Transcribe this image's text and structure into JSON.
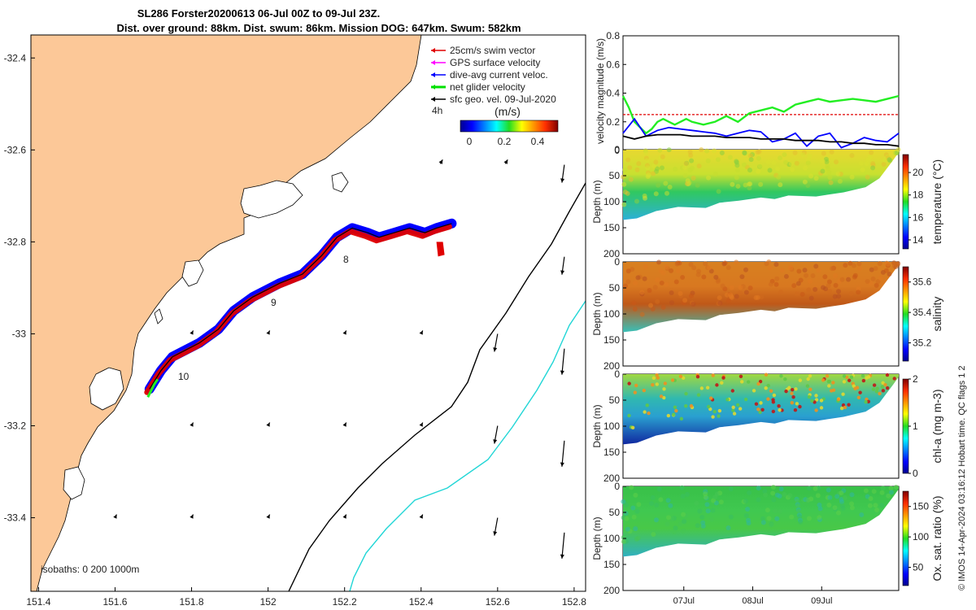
{
  "title": {
    "line1": "SL286 Forster20200613 06-Jul 00Z to 09-Jul 23Z.",
    "line2": "Dist. over ground: 88km. Dist. swum: 86km. Mission DOG: 647km. Swum: 582km"
  },
  "legend": {
    "items": [
      {
        "label": "25cm/s swim vector",
        "color": "#e00000"
      },
      {
        "label": "GPS surface velocity",
        "color": "#ff00ff"
      },
      {
        "label": "dive-avg current veloc.",
        "color": "#0000ff"
      },
      {
        "label": "net glider velocity",
        "color": "#00e000"
      },
      {
        "label": "sfc geo. vel. 09-Jul-2020",
        "color": "#000000"
      }
    ],
    "tag": "4h",
    "colorbar_label": "(m/s)",
    "colorbar_ticks": [
      "0",
      "0.2",
      "0.4"
    ]
  },
  "isobaths_label": "isobaths: 0   200  1000m",
  "footer": "© IMOS 14-Apr-2024 03:16:12 Hobart time. QC flags 1  2",
  "colors": {
    "land": "#fcc898",
    "shelf": "#000000",
    "slope": "#21d6d6",
    "swim": "#e00000",
    "current": "#0000ff",
    "net": "#22ee22"
  },
  "chart_data": [
    {
      "type": "scatter",
      "name": "map",
      "xlabel": "",
      "ylabel": "",
      "xlim": [
        151.38,
        152.83
      ],
      "ylim": [
        -33.56,
        -32.35
      ],
      "x_ticks": [
        "151.4",
        "151.6",
        "151.8",
        "152",
        "152.2",
        "152.4",
        "152.6",
        "152.8"
      ],
      "y_ticks": [
        "-32.4",
        "-32.6",
        "-32.8",
        "-33",
        "-33.2",
        "-33.4"
      ],
      "track_labels": [
        {
          "text": "8",
          "lon": 152.18,
          "lat": -32.82
        },
        {
          "text": "9",
          "lon": 151.95,
          "lat": -32.92
        },
        {
          "text": "10",
          "lon": 151.74,
          "lat": -33.08
        }
      ],
      "track": [
        [
          151.69,
          -33.12
        ],
        [
          151.72,
          -33.08
        ],
        [
          151.75,
          -33.05
        ],
        [
          151.82,
          -33.02
        ],
        [
          151.87,
          -32.99
        ],
        [
          151.91,
          -32.95
        ],
        [
          151.96,
          -32.92
        ],
        [
          152.03,
          -32.89
        ],
        [
          152.09,
          -32.87
        ],
        [
          152.14,
          -32.83
        ],
        [
          152.18,
          -32.79
        ],
        [
          152.22,
          -32.77
        ],
        [
          152.26,
          -32.78
        ],
        [
          152.29,
          -32.79
        ],
        [
          152.33,
          -32.78
        ],
        [
          152.37,
          -32.77
        ],
        [
          152.41,
          -32.78
        ],
        [
          152.44,
          -32.77
        ],
        [
          152.48,
          -32.76
        ]
      ]
    },
    {
      "type": "line",
      "name": "velocity",
      "ylabel": "velocity magnitude (m/s)",
      "xlim": [
        0,
        96
      ],
      "ylim": [
        0,
        0.8
      ],
      "y_ticks": [
        "0",
        "0.2",
        "0.4",
        "0.6",
        "0.8"
      ],
      "series": [
        {
          "name": "25cm/s swim vector",
          "color": "#e00000",
          "x": [
            0,
            96
          ],
          "values": [
            0.25,
            0.25
          ]
        },
        {
          "name": "net glider velocity",
          "color": "#22ee22",
          "x": [
            0,
            2,
            4,
            6,
            8,
            10,
            12,
            14,
            16,
            18,
            20,
            22,
            24,
            28,
            32,
            36,
            40,
            44,
            48,
            52,
            56,
            60,
            64,
            68,
            72,
            76,
            80,
            84,
            88,
            92,
            96
          ],
          "values": [
            0.38,
            0.3,
            0.2,
            0.16,
            0.12,
            0.15,
            0.2,
            0.22,
            0.2,
            0.18,
            0.2,
            0.22,
            0.2,
            0.18,
            0.2,
            0.24,
            0.2,
            0.26,
            0.28,
            0.3,
            0.27,
            0.32,
            0.34,
            0.36,
            0.34,
            0.35,
            0.36,
            0.35,
            0.34,
            0.36,
            0.38
          ]
        },
        {
          "name": "dive-avg current veloc.",
          "color": "#0000ff",
          "x": [
            0,
            4,
            8,
            12,
            16,
            20,
            24,
            28,
            32,
            36,
            40,
            44,
            48,
            52,
            56,
            60,
            64,
            68,
            72,
            76,
            80,
            84,
            88,
            92,
            96
          ],
          "values": [
            0.12,
            0.22,
            0.1,
            0.14,
            0.16,
            0.15,
            0.14,
            0.13,
            0.12,
            0.1,
            0.12,
            0.14,
            0.13,
            0.06,
            0.08,
            0.12,
            0.03,
            0.1,
            0.12,
            0.02,
            0.05,
            0.09,
            0.07,
            0.06,
            0.12
          ]
        },
        {
          "name": "sfc geo. vel. 09-Jul-2020",
          "color": "#000000",
          "x": [
            0,
            4,
            8,
            12,
            16,
            20,
            24,
            28,
            32,
            36,
            40,
            44,
            48,
            52,
            56,
            60,
            64,
            68,
            72,
            76,
            80,
            84,
            88,
            92,
            96
          ],
          "values": [
            0.1,
            0.08,
            0.1,
            0.11,
            0.11,
            0.11,
            0.1,
            0.1,
            0.1,
            0.09,
            0.09,
            0.09,
            0.08,
            0.08,
            0.08,
            0.07,
            0.07,
            0.07,
            0.06,
            0.06,
            0.05,
            0.05,
            0.04,
            0.04,
            0.03
          ]
        }
      ]
    },
    {
      "type": "heatmap",
      "name": "temperature",
      "ylabel": "Depth (m)",
      "ylim": [
        200,
        0
      ],
      "y_ticks": [
        "0",
        "50",
        "100",
        "150",
        "200"
      ],
      "colorbar_label": "temperature (°C)",
      "colorbar_ticks": [
        "14",
        "16",
        "18",
        "20"
      ],
      "clim": [
        13.2,
        21.6
      ]
    },
    {
      "type": "heatmap",
      "name": "salinity",
      "ylabel": "Depth (m)",
      "ylim": [
        200,
        0
      ],
      "y_ticks": [
        "0",
        "50",
        "100",
        "150",
        "200"
      ],
      "colorbar_label": "salinity",
      "colorbar_ticks": [
        "35.2",
        "35.4",
        "35.6"
      ],
      "clim": [
        35.08,
        35.7
      ]
    },
    {
      "type": "heatmap",
      "name": "chl-a",
      "ylabel": "Depth (m)",
      "ylim": [
        200,
        0
      ],
      "y_ticks": [
        "0",
        "50",
        "100",
        "150",
        "200"
      ],
      "colorbar_label": "chl-a (mg m-3)",
      "colorbar_ticks": [
        "0",
        "1",
        "2"
      ],
      "clim": [
        0,
        2
      ]
    },
    {
      "type": "heatmap",
      "name": "oxygen",
      "ylabel": "Depth (m)",
      "ylim": [
        200,
        0
      ],
      "y_ticks": [
        "0",
        "50",
        "100",
        "150",
        "200"
      ],
      "x_ticks": [
        "07Jul",
        "08Jul",
        "09Jul"
      ],
      "colorbar_label": "Ox. sat. ratio (%)",
      "colorbar_ticks": [
        "50",
        "100",
        "150"
      ],
      "clim": [
        20,
        175
      ]
    }
  ]
}
